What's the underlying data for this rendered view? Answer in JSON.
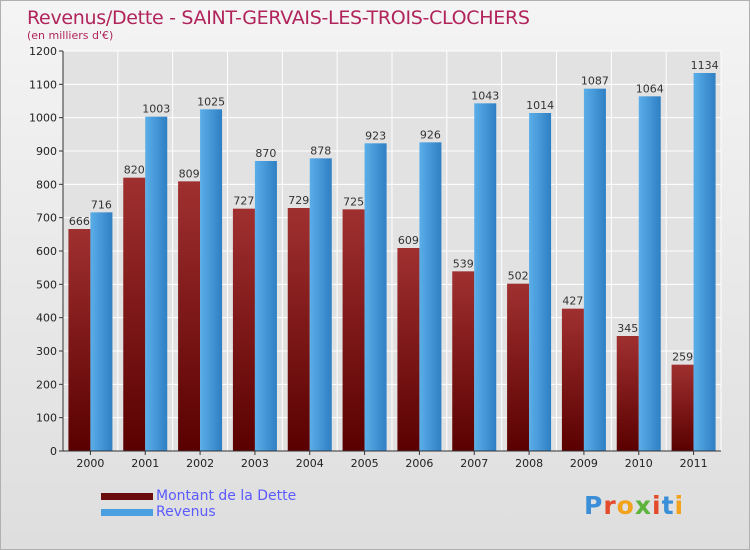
{
  "title": "Revenus/Dette - SAINT-GERVAIS-LES-TROIS-CLOCHERS",
  "subtitle": "(en milliers d'€)",
  "logo": {
    "text": "Proxiti",
    "letters": [
      "P",
      "r",
      "o",
      "x",
      "i",
      "t",
      "i"
    ],
    "colors": [
      "#3a8fd8",
      "#e34b2a",
      "#f2a21b",
      "#5cb43a",
      "#e34b2a",
      "#3a8fd8",
      "#f2a21b"
    ]
  },
  "chart_data": {
    "type": "bar",
    "title": "Revenus/Dette - SAINT-GERVAIS-LES-TROIS-CLOCHERS",
    "ylabel": "(en milliers d'€)",
    "xlabel": "",
    "categories": [
      "2000",
      "2001",
      "2002",
      "2003",
      "2004",
      "2005",
      "2006",
      "2007",
      "2008",
      "2009",
      "2010",
      "2011"
    ],
    "ylim": [
      0,
      1200
    ],
    "yticks": [
      0,
      100,
      200,
      300,
      400,
      500,
      600,
      700,
      800,
      900,
      1000,
      1100,
      1200
    ],
    "grid": true,
    "legend_position": "bottom-left",
    "series": [
      {
        "name": "Montant de la Dette",
        "color": "#8b1a1a",
        "values": [
          666,
          820,
          809,
          727,
          729,
          725,
          609,
          539,
          502,
          427,
          345,
          259
        ]
      },
      {
        "name": "Revenus",
        "color": "#4a9fe0",
        "values": [
          716,
          1003,
          1025,
          870,
          878,
          923,
          926,
          1043,
          1014,
          1087,
          1064,
          1134
        ]
      }
    ]
  }
}
